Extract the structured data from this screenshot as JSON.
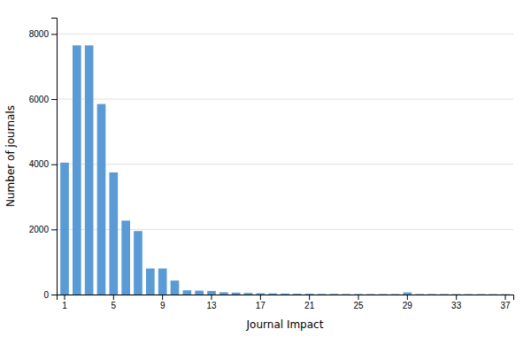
{
  "chart_data": {
    "type": "bar",
    "xlabel": "Journal Impact",
    "ylabel": "Number of journals",
    "categories": [
      "1",
      null,
      null,
      null,
      "5",
      null,
      null,
      null,
      "9",
      null,
      null,
      null,
      "13",
      null,
      null,
      null,
      "17",
      null,
      null,
      null,
      "21",
      null,
      null,
      null,
      "25",
      null,
      null,
      null,
      "29",
      null,
      null,
      null,
      "33",
      null,
      null,
      null,
      "37"
    ],
    "values": [
      4050,
      7650,
      7650,
      5850,
      3750,
      2270,
      1950,
      800,
      800,
      430,
      130,
      120,
      110,
      70,
      60,
      50,
      40,
      35,
      30,
      25,
      25,
      20,
      20,
      15,
      15,
      15,
      15,
      15,
      65,
      15,
      15,
      15,
      14,
      13,
      12,
      12,
      12
    ],
    "color": "#5B9BD5",
    "ylim": [
      0,
      8500
    ],
    "yticks": [
      0,
      2000,
      4000,
      6000,
      8000
    ],
    "grid": true
  }
}
